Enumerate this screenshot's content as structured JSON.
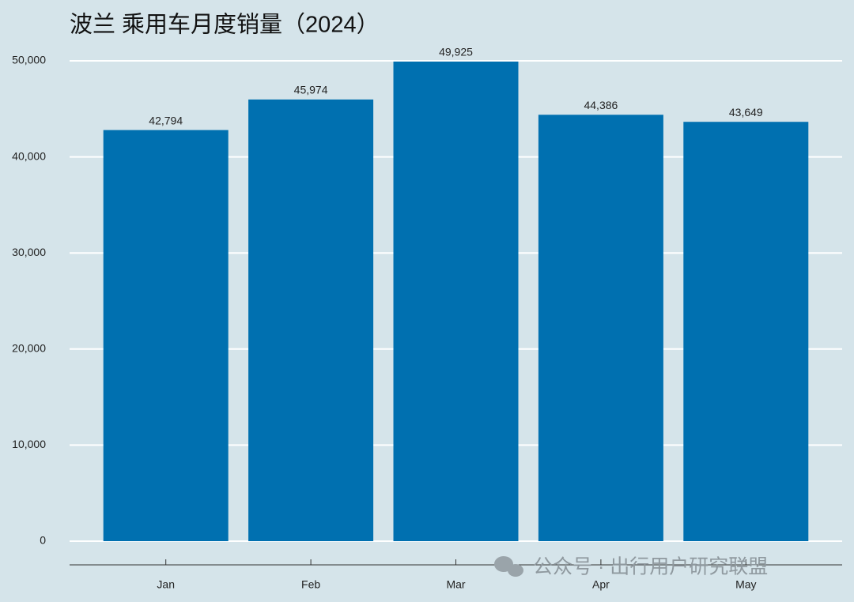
{
  "chart_data": {
    "type": "bar",
    "title": "波兰 乘用车月度销量（2024）",
    "categories": [
      "Jan",
      "Feb",
      "Mar",
      "Apr",
      "May"
    ],
    "values": [
      42794,
      45974,
      49925,
      44386,
      43649
    ],
    "value_labels": [
      "42,794",
      "45,974",
      "49,925",
      "44,386",
      "43,649"
    ],
    "color": "#0070b0",
    "ylim": [
      0,
      50000
    ],
    "yticks": [
      0,
      {
        "value": 10000,
        "label": "10,000"
      },
      {
        "value": 20000,
        "label": "20,000"
      },
      {
        "value": 30000,
        "label": "30,000"
      },
      {
        "value": 40000,
        "label": "40,000"
      },
      {
        "value": 50000,
        "label": "50,000"
      }
    ],
    "grid": true
  },
  "watermark": "公众号 · 出行用户研究联盟"
}
